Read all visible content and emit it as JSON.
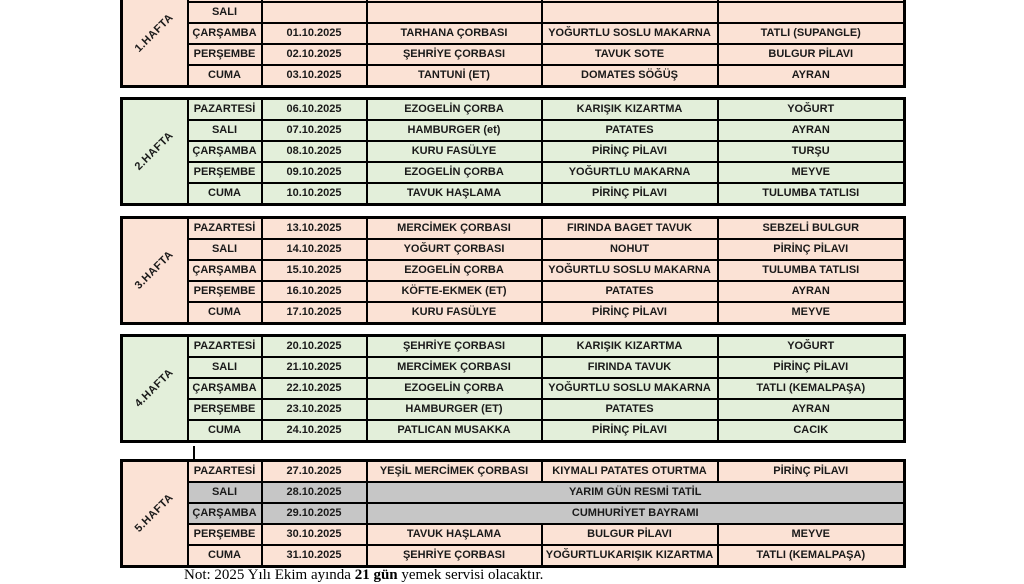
{
  "colors": {
    "peach": "#fbe2d5",
    "green": "#e3efda",
    "holiday_gray": "#c6c6c6",
    "border": "#000000"
  },
  "weeks": [
    {
      "label": "1.HAFTA",
      "bg": "peach",
      "rows": [
        {
          "day": "",
          "date": "",
          "soup": "",
          "main": "",
          "side": ""
        },
        {
          "day": "SALI",
          "date": "",
          "soup": "",
          "main": "",
          "side": ""
        },
        {
          "day": "ÇARŞAMBA",
          "date": "01.10.2025",
          "soup": "TARHANA ÇORBASI",
          "main": "YOĞURTLU SOSLU MAKARNA",
          "side": "TATLI (SUPANGLE)"
        },
        {
          "day": "PERŞEMBE",
          "date": "02.10.2025",
          "soup": "ŞEHRİYE ÇORBASI",
          "main": "TAVUK SOTE",
          "side": "BULGUR PİLAVI"
        },
        {
          "day": "CUMA",
          "date": "03.10.2025",
          "soup": "TANTUNİ (ET)",
          "main": "DOMATES SÖĞÜŞ",
          "side": "AYRAN"
        }
      ]
    },
    {
      "label": "2.HAFTA",
      "bg": "green",
      "rows": [
        {
          "day": "PAZARTESİ",
          "date": "06.10.2025",
          "soup": "EZOGELİN ÇORBA",
          "main": "KARIŞIK KIZARTMA",
          "side": "YOĞURT"
        },
        {
          "day": "SALI",
          "date": "07.10.2025",
          "soup": "HAMBURGER (et)",
          "main": "PATATES",
          "side": "AYRAN"
        },
        {
          "day": "ÇARŞAMBA",
          "date": "08.10.2025",
          "soup": "KURU FASÜLYE",
          "main": "PİRİNÇ PİLAVI",
          "side": "TURŞU"
        },
        {
          "day": "PERŞEMBE",
          "date": "09.10.2025",
          "soup": "EZOGELİN ÇORBA",
          "main": "YOĞURTLU MAKARNA",
          "side": "MEYVE"
        },
        {
          "day": "CUMA",
          "date": "10.10.2025",
          "soup": "TAVUK HAŞLAMA",
          "main": "PİRİNÇ PİLAVI",
          "side": "TULUMBA TATLISI"
        }
      ]
    },
    {
      "label": "3.HAFTA",
      "bg": "peach",
      "rows": [
        {
          "day": "PAZARTESİ",
          "date": "13.10.2025",
          "soup": "MERCİMEK ÇORBASI",
          "main": "FIRINDA BAGET TAVUK",
          "side": "SEBZELİ BULGUR"
        },
        {
          "day": "SALI",
          "date": "14.10.2025",
          "soup": "YOĞURT ÇORBASI",
          "main": "NOHUT",
          "side": "PİRİNÇ PİLAVI"
        },
        {
          "day": "ÇARŞAMBA",
          "date": "15.10.2025",
          "soup": "EZOGELİN ÇORBA",
          "main": "YOĞURTLU SOSLU MAKARNA",
          "side": "TULUMBA TATLISI"
        },
        {
          "day": "PERŞEMBE",
          "date": "16.10.2025",
          "soup": "KÖFTE-EKMEK (ET)",
          "main": "PATATES",
          "side": "AYRAN"
        },
        {
          "day": "CUMA",
          "date": "17.10.2025",
          "soup": "KURU FASÜLYE",
          "main": "PİRİNÇ PİLAVI",
          "side": "MEYVE"
        }
      ]
    },
    {
      "label": "4.HAFTA",
      "bg": "green",
      "rows": [
        {
          "day": "PAZARTESİ",
          "date": "20.10.2025",
          "soup": "ŞEHRİYE ÇORBASI",
          "main": "KARIŞIK KIZARTMA",
          "side": "YOĞURT"
        },
        {
          "day": "SALI",
          "date": "21.10.2025",
          "soup": "MERCİMEK ÇORBASI",
          "main": "FIRINDA TAVUK",
          "side": "PİRİNÇ PİLAVI"
        },
        {
          "day": "ÇARŞAMBA",
          "date": "22.10.2025",
          "soup": "EZOGELİN ÇORBA",
          "main": "YOĞURTLU SOSLU MAKARNA",
          "side": "TATLI (KEMALPAŞA)"
        },
        {
          "day": "PERŞEMBE",
          "date": "23.10.2025",
          "soup": "HAMBURGER (ET)",
          "main": "PATATES",
          "side": "AYRAN"
        },
        {
          "day": "CUMA",
          "date": "24.10.2025",
          "soup": "PATLICAN MUSAKKA",
          "main": "PİRİNÇ PİLAVI",
          "side": "CACIK"
        }
      ]
    },
    {
      "label": "5.HAFTA",
      "bg": "peach",
      "rows": [
        {
          "day": "PAZARTESİ",
          "date": "27.10.2025",
          "soup": "YEŞİL MERCİMEK ÇORBASI",
          "main": "KIYMALI PATATES OTURTMA",
          "side": "PİRİNÇ PİLAVI"
        },
        {
          "day": "SALI",
          "date": "28.10.2025",
          "holiday": "YARIM GÜN RESMİ TATİL"
        },
        {
          "day": "ÇARŞAMBA",
          "date": "29.10.2025",
          "holiday": "CUMHURİYET BAYRAMI"
        },
        {
          "day": "PERŞEMBE",
          "date": "30.10.2025",
          "soup": "TAVUK HAŞLAMA",
          "main": "BULGUR PİLAVI",
          "side": "MEYVE"
        },
        {
          "day": "CUMA",
          "date": "31.10.2025",
          "soup": "ŞEHRİYE ÇORBASI",
          "main": "YOĞURTLUKARIŞIK KIZARTMA",
          "side": "TATLI (KEMALPAŞA)"
        }
      ]
    }
  ],
  "note": {
    "prefix": "Not: 2025 Yılı Ekim ayında ",
    "bold": "21 gün",
    "suffix": " yemek servisi olacaktır."
  }
}
